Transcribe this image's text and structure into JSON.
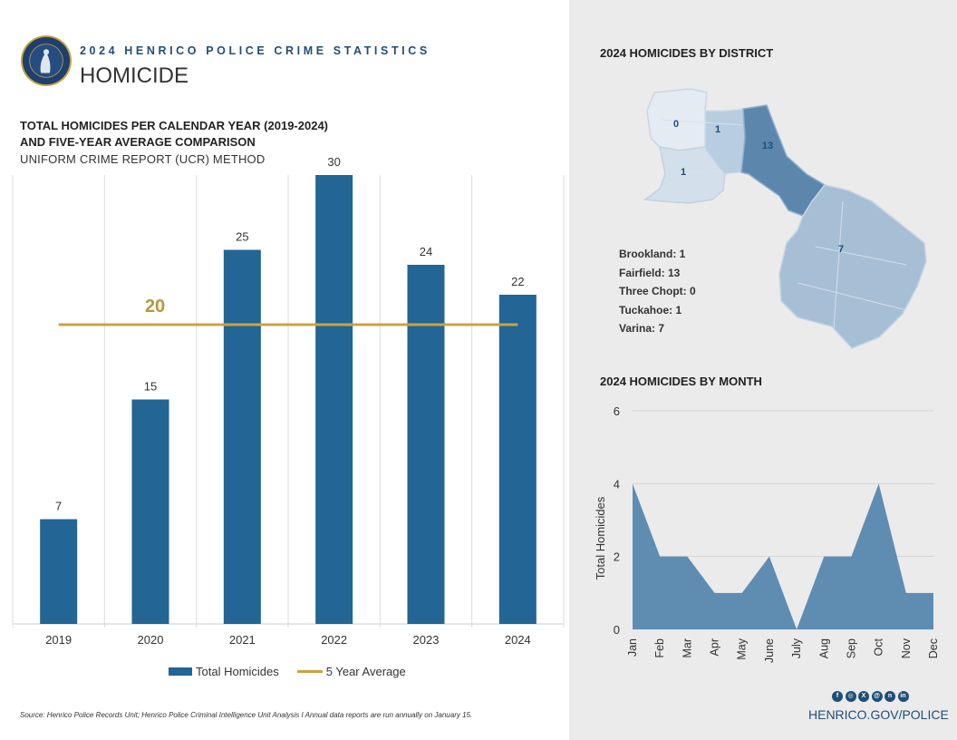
{
  "header": {
    "kicker": "2024 HENRICO POLICE CRIME STATISTICS",
    "title": "HOMICIDE",
    "seal_text": "HENRICO POLICE"
  },
  "colors": {
    "bar": "#236594",
    "average": "#c9a43f",
    "brand": "#1f4e79",
    "area": "#5f8db2",
    "map_base": "#a7bfd5",
    "map_dark": "#5d86ad"
  },
  "chart_data": [
    {
      "type": "bar",
      "title_line1": "TOTAL HOMICIDES PER CALENDAR YEAR (2019-2024)",
      "title_line2": "AND FIVE-YEAR AVERAGE COMPARISON",
      "subtitle": "UNIFORM CRIME REPORT (UCR) METHOD",
      "categories": [
        "2019",
        "2020",
        "2021",
        "2022",
        "2023",
        "2024"
      ],
      "series": [
        {
          "name": "Total Homicides",
          "values": [
            7,
            15,
            25,
            30,
            24,
            22
          ]
        }
      ],
      "average": {
        "name": "5 Year Average",
        "value": 20,
        "label": "20"
      },
      "ylim": [
        0,
        30
      ],
      "grid": "vertical",
      "legend": "bottom"
    },
    {
      "type": "area",
      "title": "2024 HOMICIDES BY MONTH",
      "categories": [
        "Jan",
        "Feb",
        "Mar",
        "Apr",
        "May",
        "June",
        "July",
        "Aug",
        "Sep",
        "Oct",
        "Nov",
        "Dec"
      ],
      "values": [
        4,
        2,
        2,
        1,
        1,
        2,
        0,
        2,
        2,
        4,
        1,
        1
      ],
      "ylabel": "Total Homicides",
      "ylim": [
        0,
        6
      ],
      "yticks": [
        "0",
        "2",
        "4",
        "6"
      ],
      "grid": "horizontal"
    }
  ],
  "district": {
    "heading": "2024 HOMICIDES BY DISTRICT",
    "items": [
      {
        "name": "Brookland",
        "value": "1",
        "label": "Brookland: 1"
      },
      {
        "name": "Fairfield",
        "value": "13",
        "label": "Fairfield: 13"
      },
      {
        "name": "Three Chopt",
        "value": "0",
        "label": "Three Chopt: 0"
      },
      {
        "name": "Tuckahoe",
        "value": "1",
        "label": "Tuckahoe: 1"
      },
      {
        "name": "Varina",
        "value": "7",
        "label": "Varina: 7"
      }
    ]
  },
  "footer": {
    "source": "Source: Henrico Police Records Unit; Henrico Police Criminal Intelligence Unit Analysis  I  Annual data reports are run annually on January 15.",
    "url": "HENRICO.GOV/POLICE",
    "social_icons": [
      "facebook-icon",
      "instagram-icon",
      "x-icon",
      "threads-icon",
      "nextdoor-icon",
      "linkedin-icon"
    ]
  }
}
